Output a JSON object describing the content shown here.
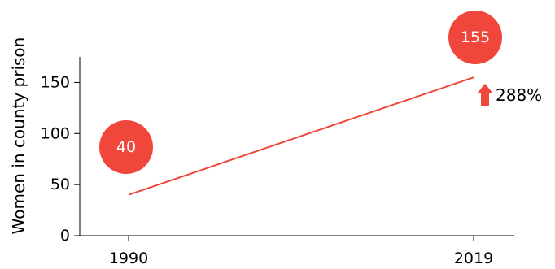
{
  "chart_data": {
    "type": "line",
    "x": [
      1990,
      2019
    ],
    "xticks": [
      "1990",
      "2019"
    ],
    "yticks": [
      "0",
      "50",
      "100",
      "150"
    ],
    "ylim": [
      0,
      175
    ],
    "ylabel": "Women in county prison",
    "series": [
      {
        "values": [
          40,
          155
        ]
      }
    ],
    "annotations": {
      "start_value": "40",
      "end_value": "155",
      "change": "288%"
    },
    "colors": {
      "line": "#f0463c",
      "bubble": "#f0463c",
      "arrow": "#f0463c",
      "axis": "#000000"
    }
  }
}
